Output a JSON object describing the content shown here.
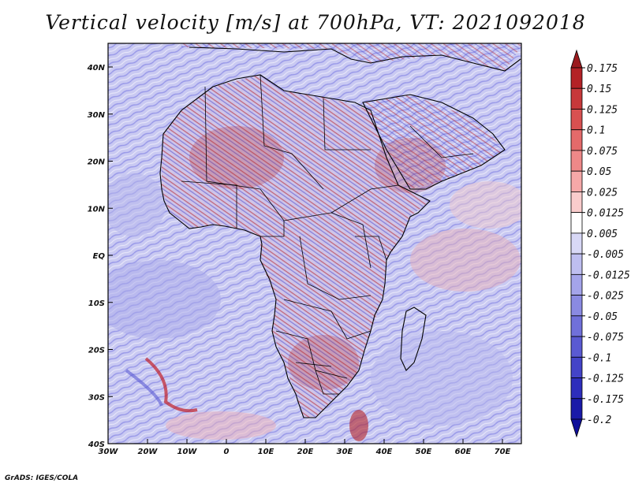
{
  "title": "Vertical velocity [m/s] at 700hPa, VT: 2021092018",
  "credit": "GrADS: IGES/COLA",
  "map": {
    "lon_range": [
      -30,
      75
    ],
    "lat_range": [
      -40,
      45
    ],
    "x_ticks": [
      "30W",
      "20W",
      "10W",
      "0",
      "10E",
      "20E",
      "30E",
      "40E",
      "50E",
      "60E",
      "70E"
    ],
    "y_ticks": [
      "40N",
      "30N",
      "20N",
      "10N",
      "EQ",
      "10S",
      "20S",
      "30S",
      "40S"
    ],
    "field": "vertical velocity",
    "colors": {
      "positive": "#c0202a",
      "negative": "#4040d0",
      "neutral": "#ffffff"
    }
  },
  "colorbar": {
    "labels": [
      "0.175",
      "0.15",
      "0.125",
      "0.1",
      "0.075",
      "0.05",
      "0.025",
      "0.0125",
      "0.005",
      "-0.005",
      "-0.0125",
      "-0.025",
      "-0.05",
      "-0.075",
      "-0.1",
      "-0.125",
      "-0.175",
      "-0.2"
    ],
    "colors": [
      "#9b1a1e",
      "#b32226",
      "#c7383a",
      "#d85050",
      "#e46a6a",
      "#ee8888",
      "#f5a8a8",
      "#f9cccc",
      "#ffffff",
      "#d8d8f6",
      "#bebef0",
      "#a4a4ea",
      "#8a8ae2",
      "#7070da",
      "#5a5ad2",
      "#4444c8",
      "#2e2ebc",
      "#1a1aa8",
      "#10109a"
    ]
  }
}
